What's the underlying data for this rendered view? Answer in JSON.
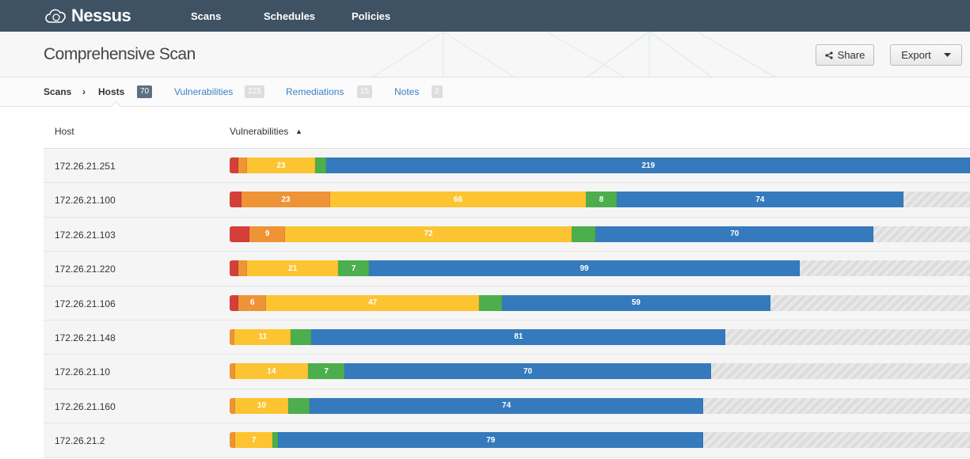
{
  "app": {
    "name": "Nessus",
    "nav": [
      "Scans",
      "Schedules",
      "Policies"
    ]
  },
  "page": {
    "title": "Comprehensive Scan",
    "share": "Share",
    "export": "Export"
  },
  "breadcrumb": {
    "root": "Scans",
    "separator": "›",
    "current": "Hosts",
    "current_count": "70"
  },
  "tabs": [
    {
      "label": "Vulnerabilities",
      "count": "225"
    },
    {
      "label": "Remediations",
      "count": "15"
    },
    {
      "label": "Notes",
      "count": "2"
    }
  ],
  "table": {
    "col_host": "Host",
    "col_vulns": "Vulnerabilities",
    "sort": "▲"
  },
  "severity_colors": [
    "#d43f3a",
    "#ee9336",
    "#fdc431",
    "#4cae4c",
    "#357abd"
  ],
  "rows": [
    {
      "host": "172.26.21.251",
      "fill": 1.0,
      "counts": [
        3,
        3,
        23,
        4,
        219
      ],
      "shown": [
        false,
        false,
        true,
        false,
        true
      ]
    },
    {
      "host": "172.26.21.100",
      "fill": 0.91,
      "counts": [
        3,
        23,
        66,
        8,
        74
      ],
      "shown": [
        false,
        true,
        true,
        true,
        true
      ]
    },
    {
      "host": "172.26.21.103",
      "fill": 0.87,
      "counts": [
        5,
        9,
        72,
        6,
        70
      ],
      "shown": [
        false,
        true,
        true,
        false,
        true
      ]
    },
    {
      "host": "172.26.21.220",
      "fill": 0.77,
      "counts": [
        2,
        2,
        21,
        7,
        99
      ],
      "shown": [
        false,
        false,
        true,
        true,
        true
      ]
    },
    {
      "host": "172.26.21.106",
      "fill": 0.73,
      "counts": [
        2,
        6,
        47,
        5,
        59
      ],
      "shown": [
        false,
        true,
        true,
        false,
        true
      ]
    },
    {
      "host": "172.26.21.148",
      "fill": 0.67,
      "counts": [
        0,
        1,
        11,
        4,
        81
      ],
      "shown": [
        false,
        false,
        true,
        false,
        true
      ]
    },
    {
      "host": "172.26.21.10",
      "fill": 0.65,
      "counts": [
        0,
        1,
        14,
        7,
        70
      ],
      "shown": [
        false,
        false,
        true,
        true,
        true
      ]
    },
    {
      "host": "172.26.21.160",
      "fill": 0.64,
      "counts": [
        0,
        1,
        10,
        4,
        74
      ],
      "shown": [
        false,
        false,
        true,
        false,
        true
      ]
    },
    {
      "host": "172.26.21.2",
      "fill": 0.64,
      "counts": [
        0,
        1,
        7,
        1,
        79
      ],
      "shown": [
        false,
        false,
        true,
        false,
        true
      ]
    }
  ]
}
